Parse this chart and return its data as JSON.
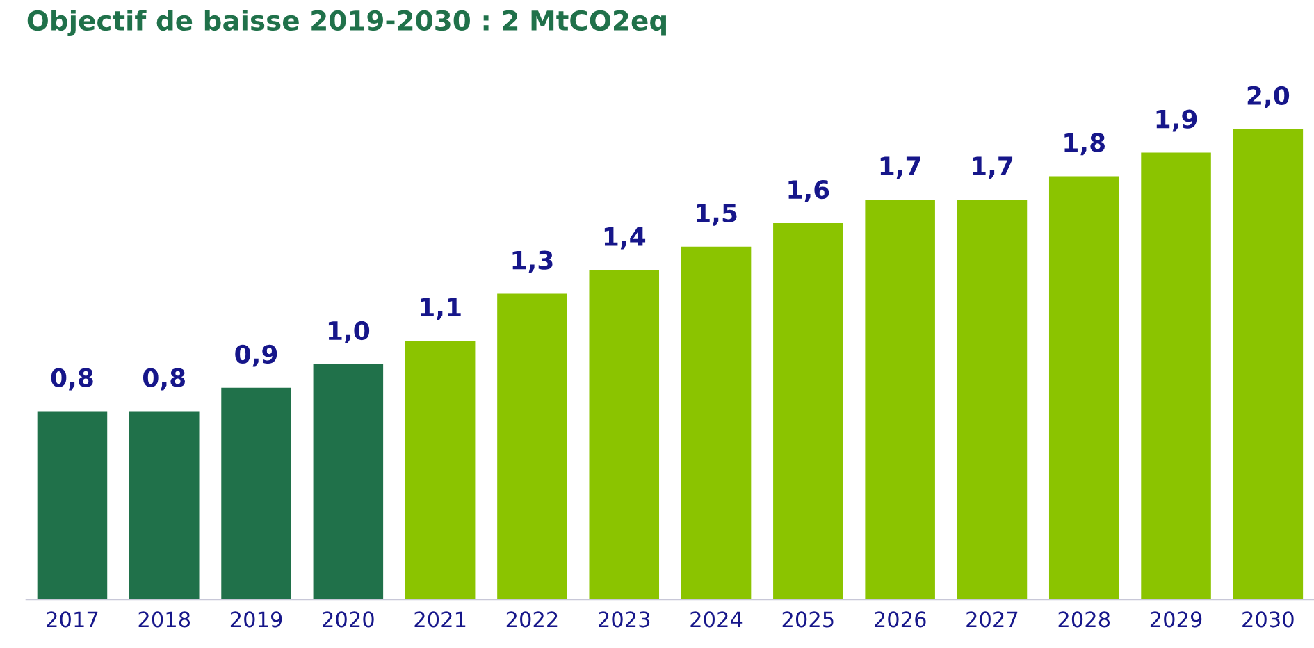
{
  "chart_data": {
    "type": "bar",
    "title": "Objectif de baisse 2019-2030 : 2 MtCO2eq",
    "categories": [
      "2017",
      "2018",
      "2019",
      "2020",
      "2021",
      "2022",
      "2023",
      "2024",
      "2025",
      "2026",
      "2027",
      "2028",
      "2029",
      "2030"
    ],
    "values": [
      0.8,
      0.8,
      0.9,
      1.0,
      1.1,
      1.3,
      1.4,
      1.5,
      1.6,
      1.7,
      1.7,
      1.8,
      1.9,
      2.0
    ],
    "value_labels": [
      "0,8",
      "0,8",
      "0,9",
      "1,0",
      "1,1",
      "1,3",
      "1,4",
      "1,5",
      "1,6",
      "1,7",
      "1,7",
      "1,8",
      "1,9",
      "2,0"
    ],
    "colors": [
      "#20714a",
      "#20714a",
      "#20714a",
      "#20714a",
      "#8bc400",
      "#8bc400",
      "#8bc400",
      "#8bc400",
      "#8bc400",
      "#8bc400",
      "#8bc400",
      "#8bc400",
      "#8bc400",
      "#8bc400"
    ],
    "grid": false,
    "legend": false
  }
}
